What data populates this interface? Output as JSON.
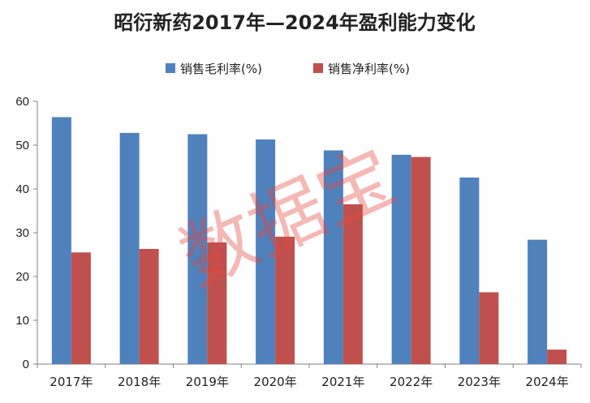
{
  "chart_data": {
    "type": "bar",
    "title": "昭衍新药2017年—2024年盈利能力变化",
    "categories": [
      "2017年",
      "2018年",
      "2019年",
      "2020年",
      "2021年",
      "2022年",
      "2023年",
      "2024年"
    ],
    "series": [
      {
        "name": "销售毛利率(%)",
        "color": "#4f81bd",
        "values": [
          56.4,
          52.8,
          52.5,
          51.3,
          48.8,
          47.8,
          42.6,
          28.4
        ]
      },
      {
        "name": "销售净利率(%)",
        "color": "#c0504d",
        "values": [
          25.5,
          26.3,
          27.8,
          29.1,
          36.5,
          47.3,
          16.4,
          3.3
        ]
      }
    ],
    "yticks": [
      "0",
      "10",
      "20",
      "30",
      "40",
      "50",
      "60"
    ],
    "ylim": [
      0,
      60
    ],
    "grid": false,
    "legend_position": "top"
  },
  "watermark": "数据宝"
}
